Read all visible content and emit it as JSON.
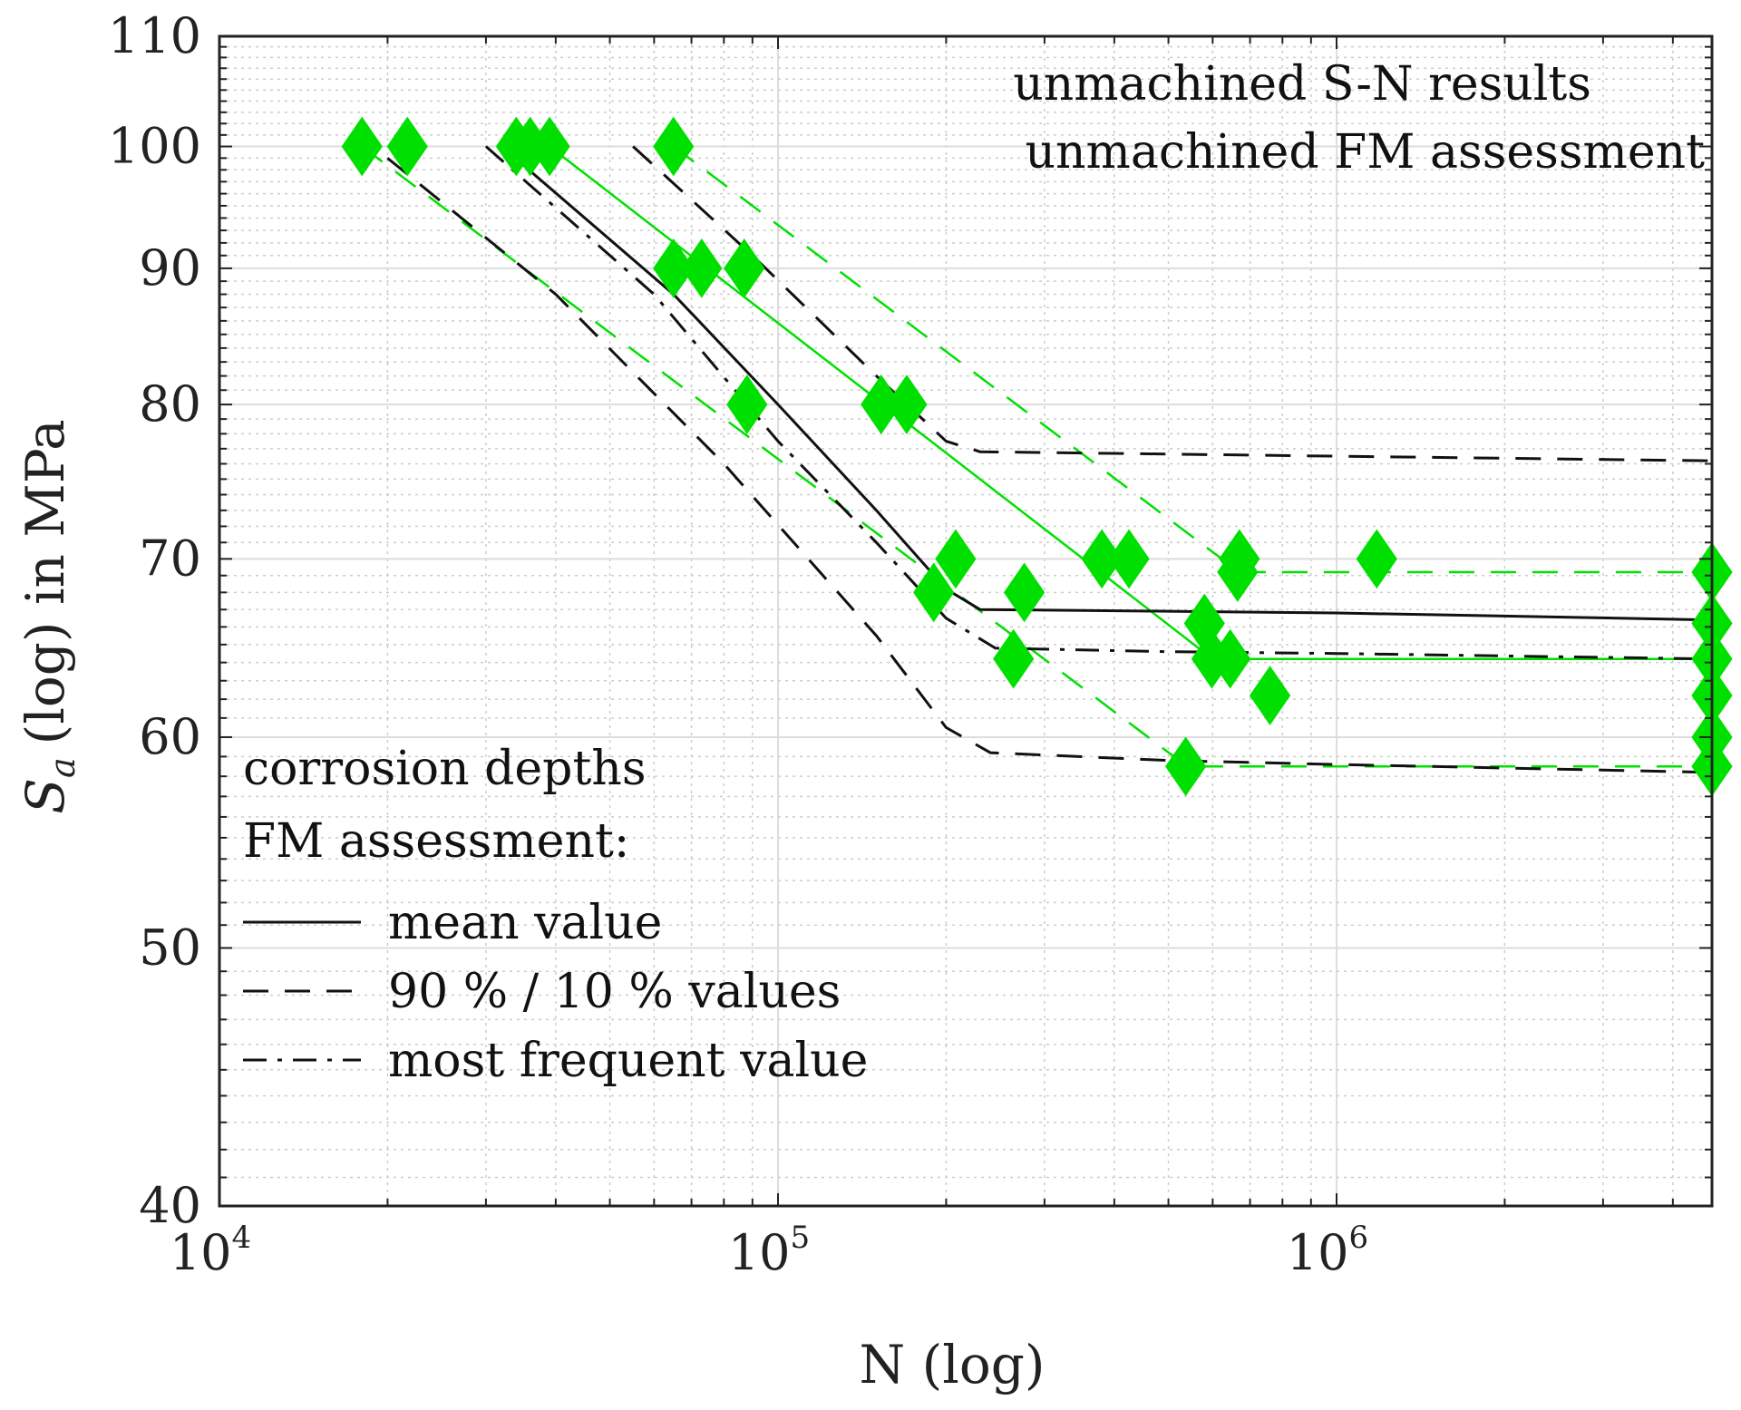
{
  "chart_data": {
    "type": "scatter",
    "title": "",
    "xlabel": "N (log)",
    "ylabel": {
      "symbol": "S",
      "subscript": "a",
      "rest": "(log) in MPa"
    },
    "xscale": "log",
    "yscale": "log",
    "xlim": [
      10000,
      4700000
    ],
    "ylim": [
      40,
      110
    ],
    "xticks": [
      {
        "value": 10000,
        "base": "10",
        "exp": "4"
      },
      {
        "value": 100000,
        "base": "10",
        "exp": "5"
      },
      {
        "value": 1000000,
        "base": "10",
        "exp": "6"
      }
    ],
    "yticks": [
      40,
      50,
      60,
      70,
      80,
      90,
      100,
      110
    ],
    "grid": true,
    "series": [
      {
        "name": "unmachined S-N results",
        "kind": "markers",
        "marker": "diamond",
        "color": "#00e000",
        "points": [
          [
            18000,
            100
          ],
          [
            21700,
            100
          ],
          [
            34000,
            100
          ],
          [
            36000,
            100
          ],
          [
            39000,
            100
          ],
          [
            65000,
            100
          ],
          [
            65000,
            90
          ],
          [
            73000,
            90
          ],
          [
            87000,
            90
          ],
          [
            88000,
            80
          ],
          [
            153000,
            80
          ],
          [
            170000,
            80
          ],
          [
            190000,
            68
          ],
          [
            208000,
            70
          ],
          [
            276000,
            68
          ],
          [
            264000,
            64.2
          ],
          [
            380000,
            70
          ],
          [
            425000,
            70
          ],
          [
            580000,
            66.2
          ],
          [
            598000,
            64.2
          ],
          [
            645000,
            64.2
          ],
          [
            665000,
            69.2
          ],
          [
            670000,
            70
          ],
          [
            760000,
            62.2
          ],
          [
            1180000,
            70
          ],
          [
            537000,
            58.5
          ],
          [
            4700000,
            69.2
          ],
          [
            4700000,
            66.2
          ],
          [
            4700000,
            64.2
          ],
          [
            4700000,
            62.2
          ],
          [
            4700000,
            60
          ],
          [
            4700000,
            58.5
          ]
        ]
      },
      {
        "name": "S-N mean",
        "kind": "line",
        "color": "#00e000",
        "dash": "solid",
        "points": [
          [
            39000,
            100
          ],
          [
            600000,
            64.2
          ],
          [
            4700000,
            64.2
          ]
        ]
      },
      {
        "name": "S-N 90% value",
        "kind": "line",
        "color": "#00e000",
        "dash": "dashed",
        "points": [
          [
            65000,
            100
          ],
          [
            670000,
            69.2
          ],
          [
            4700000,
            69.2
          ]
        ]
      },
      {
        "name": "S-N 10% value",
        "kind": "line",
        "color": "#00e000",
        "dash": "dashed",
        "points": [
          [
            18000,
            100
          ],
          [
            540000,
            58.5
          ],
          [
            4700000,
            58.5
          ]
        ]
      },
      {
        "name": "FM mean value",
        "kind": "line",
        "color": "#111111",
        "dash": "solid",
        "points": [
          [
            32000,
            100
          ],
          [
            65000,
            88
          ],
          [
            100000,
            80
          ],
          [
            150000,
            73
          ],
          [
            200000,
            68.2
          ],
          [
            230000,
            67
          ],
          [
            500000,
            66.9
          ],
          [
            1000000,
            66.8
          ],
          [
            4700000,
            66.4
          ]
        ]
      },
      {
        "name": "FM 90% value",
        "kind": "line",
        "color": "#111111",
        "dash": "dashed",
        "points": [
          [
            55000,
            100
          ],
          [
            90000,
            91
          ],
          [
            150000,
            82
          ],
          [
            200000,
            77.5
          ],
          [
            230000,
            76.8
          ],
          [
            1000000,
            76.5
          ],
          [
            4700000,
            76.2
          ]
        ]
      },
      {
        "name": "FM 10% value",
        "kind": "line",
        "color": "#111111",
        "dash": "dashed",
        "points": [
          [
            20000,
            99
          ],
          [
            40000,
            88
          ],
          [
            80000,
            76
          ],
          [
            150000,
            65.5
          ],
          [
            200000,
            60.5
          ],
          [
            240000,
            59.2
          ],
          [
            500000,
            58.8
          ],
          [
            1000000,
            58.6
          ],
          [
            4700000,
            58.2
          ]
        ]
      },
      {
        "name": "FM most frequent value",
        "kind": "line",
        "color": "#111111",
        "dash": "dashdot",
        "points": [
          [
            30000,
            100
          ],
          [
            60000,
            88
          ],
          [
            100000,
            77.5
          ],
          [
            150000,
            71
          ],
          [
            200000,
            66.5
          ],
          [
            245000,
            64.8
          ],
          [
            500000,
            64.6
          ],
          [
            1000000,
            64.5
          ],
          [
            4700000,
            64.2
          ]
        ]
      }
    ],
    "legend": {
      "top_right": [
        {
          "label": "unmachined S-N results",
          "color": "#00e000"
        },
        {
          "label": "unmachined FM assessment",
          "color": "#111111"
        }
      ],
      "bottom_left_header": [
        "corrosion depths",
        "FM assessment:"
      ],
      "bottom_left_items": [
        {
          "label": "mean value",
          "dash": "solid"
        },
        {
          "label": "90 % / 10 % values",
          "dash": "dashed"
        },
        {
          "label": "most frequent value",
          "dash": "dashdot"
        }
      ]
    }
  }
}
